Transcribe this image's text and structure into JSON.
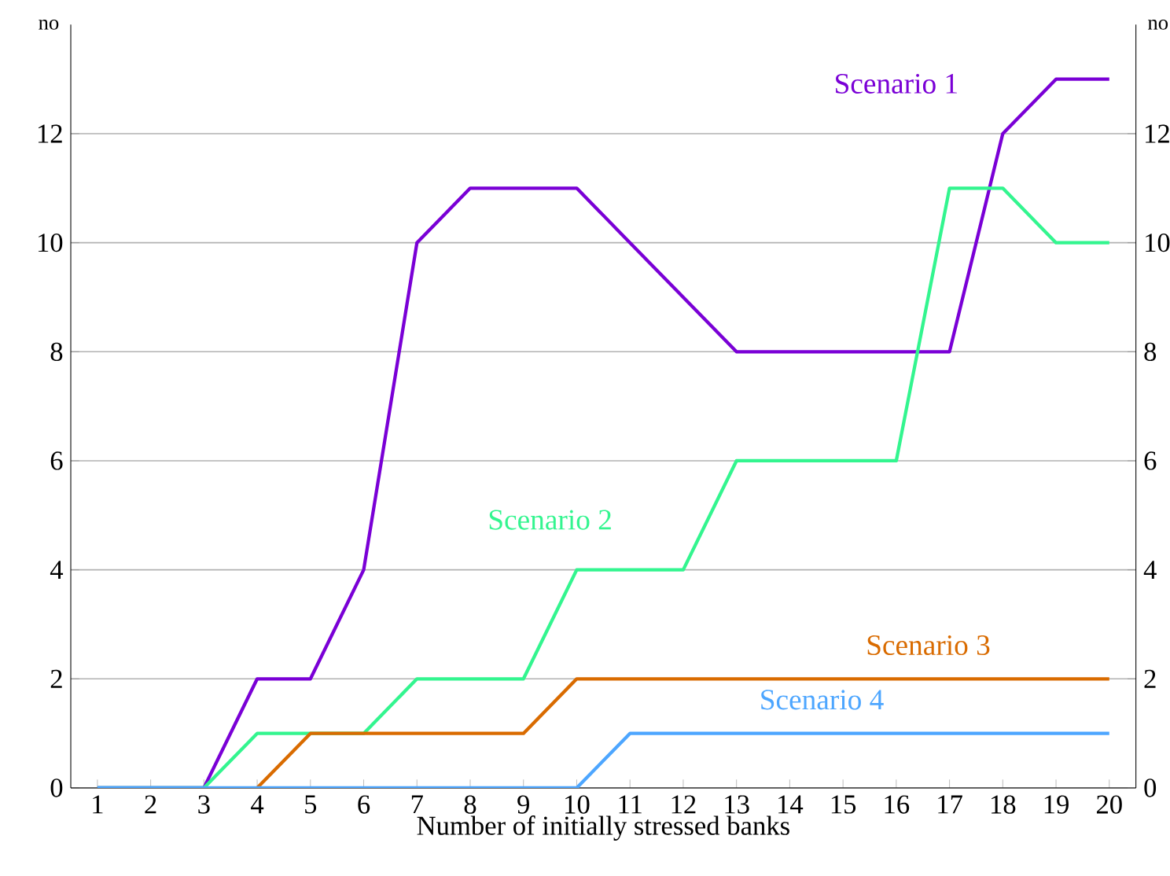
{
  "chart_data": {
    "type": "line",
    "xlabel": "Number of initially stressed banks",
    "ylabel": "no",
    "y2label": "no",
    "x": [
      1,
      2,
      3,
      4,
      5,
      6,
      7,
      8,
      9,
      10,
      11,
      12,
      13,
      14,
      15,
      16,
      17,
      18,
      19,
      20
    ],
    "xlim": [
      0.5,
      20.5
    ],
    "xticks": [
      1,
      2,
      3,
      4,
      5,
      6,
      7,
      8,
      9,
      10,
      11,
      12,
      13,
      14,
      15,
      16,
      17,
      18,
      19,
      20
    ],
    "ylim": [
      0,
      14
    ],
    "yticks": [
      0,
      2,
      4,
      6,
      8,
      10,
      12
    ],
    "y2lim": [
      0,
      14
    ],
    "y2ticks": [
      0,
      2,
      4,
      6,
      8,
      10,
      12
    ],
    "grid": "y",
    "legend": false,
    "marker": "none",
    "line_style": "solid",
    "series": [
      {
        "name": "Scenario 1",
        "color": "#7a00d6",
        "values": [
          0,
          0,
          0,
          2,
          2,
          4,
          10,
          11,
          11,
          11,
          10,
          9,
          8,
          8,
          8,
          8,
          8,
          12,
          13,
          13
        ]
      },
      {
        "name": "Scenario 2",
        "color": "#33f58f",
        "values": [
          0,
          0,
          0,
          1,
          1,
          1,
          2,
          2,
          2,
          4,
          4,
          4,
          6,
          6,
          6,
          6,
          11,
          11,
          10,
          10
        ]
      },
      {
        "name": "Scenario 3",
        "color": "#d96b00",
        "values": [
          null,
          null,
          null,
          0,
          1,
          1,
          1,
          1,
          1,
          2,
          2,
          2,
          2,
          2,
          2,
          2,
          2,
          2,
          2,
          2
        ]
      },
      {
        "name": "Scenario 4",
        "color": "#4da6ff",
        "values": [
          0,
          0,
          0,
          0,
          0,
          0,
          0,
          0,
          0,
          0,
          1,
          1,
          1,
          1,
          1,
          1,
          1,
          1,
          1,
          1
        ]
      }
    ]
  }
}
